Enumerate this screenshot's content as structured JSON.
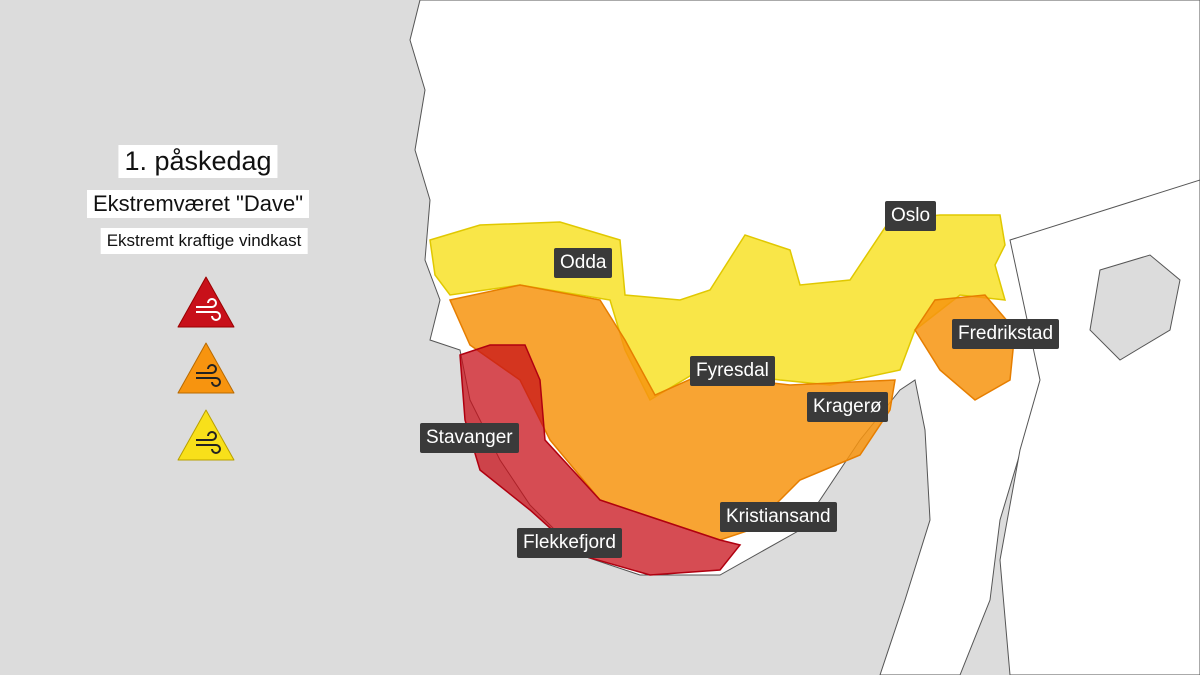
{
  "legend": {
    "day": "1. påskedag",
    "event": "Ekstremværet \"Dave\"",
    "phenomenon": "Ekstremt kraftige vindkast",
    "levels": [
      {
        "color": "#c8101a",
        "icon": "wind-icon",
        "level": "red"
      },
      {
        "color": "#f7940f",
        "icon": "wind-icon",
        "level": "orange"
      },
      {
        "color": "#f8e01a",
        "icon": "wind-icon",
        "level": "yellow"
      }
    ]
  },
  "places": [
    "Odda",
    "Oslo",
    "Fredrikstad",
    "Fyresdal",
    "Kragerø",
    "Stavanger",
    "Kristiansand",
    "Flekkefjord"
  ],
  "colors": {
    "sea": "#dcdcdc",
    "land": "#ffffff",
    "red": "#c8101a",
    "orange": "#f7940f",
    "yellow": "#f8e01a"
  }
}
